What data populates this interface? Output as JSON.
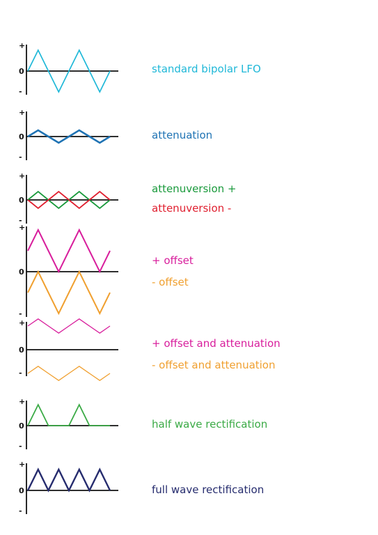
{
  "axis_ticks": {
    "plus": "+",
    "zero": "0",
    "minus": "-"
  },
  "panels": [
    {
      "id": "standard",
      "labels": [
        {
          "text": "standard bipolar LFO",
          "color": "#1fb8d8"
        }
      ],
      "waves": [
        {
          "color": "#1fb8d8",
          "points": [
            [
              0,
              0
            ],
            [
              0.5,
              1
            ],
            [
              1,
              0
            ],
            [
              1.5,
              -1
            ],
            [
              2,
              0
            ],
            [
              2.5,
              1
            ],
            [
              3,
              0
            ],
            [
              3.5,
              -1
            ],
            [
              4,
              0
            ]
          ]
        }
      ]
    },
    {
      "id": "attenuation",
      "labels": [
        {
          "text": "attenuation",
          "color": "#1f73b4"
        }
      ],
      "waves": [
        {
          "color": "#1f73b4",
          "points": [
            [
              0,
              0
            ],
            [
              0.5,
              0.3
            ],
            [
              1,
              0
            ],
            [
              1.5,
              -0.3
            ],
            [
              2,
              0
            ],
            [
              2.5,
              0.3
            ],
            [
              3,
              0
            ],
            [
              3.5,
              -0.3
            ],
            [
              4,
              0
            ]
          ]
        }
      ]
    },
    {
      "id": "attenuversion",
      "labels": [
        {
          "text": "attenuversion +",
          "color": "#1a9a3c"
        },
        {
          "text": "attenuversion -",
          "color": "#e02030"
        }
      ],
      "waves": [
        {
          "color": "#1a9a3c",
          "points": [
            [
              0,
              0
            ],
            [
              0.5,
              0.4
            ],
            [
              1,
              0
            ],
            [
              1.5,
              -0.4
            ],
            [
              2,
              0
            ],
            [
              2.5,
              0.4
            ],
            [
              3,
              0
            ],
            [
              3.5,
              -0.4
            ],
            [
              4,
              0
            ]
          ]
        },
        {
          "color": "#e02030",
          "points": [
            [
              0,
              0
            ],
            [
              0.5,
              -0.4
            ],
            [
              1,
              0
            ],
            [
              1.5,
              0.4
            ],
            [
              2,
              0
            ],
            [
              2.5,
              -0.4
            ],
            [
              3,
              0
            ],
            [
              3.5,
              0.4
            ],
            [
              4,
              0
            ]
          ]
        }
      ]
    },
    {
      "id": "offset",
      "labels": [
        {
          "text": "+ offset",
          "color": "#d81e9c"
        },
        {
          "text": "- offset",
          "color": "#f0a030"
        }
      ],
      "waves": [
        {
          "color": "#d81e9c",
          "points": [
            [
              0,
              1
            ],
            [
              0.5,
              2
            ],
            [
              1,
              1
            ],
            [
              1.5,
              0
            ],
            [
              2,
              1
            ],
            [
              2.5,
              2
            ],
            [
              3,
              1
            ],
            [
              3.5,
              0
            ],
            [
              4,
              1
            ]
          ]
        },
        {
          "color": "#f0a030",
          "points": [
            [
              0,
              -1
            ],
            [
              0.5,
              0
            ],
            [
              1,
              -1
            ],
            [
              1.5,
              -2
            ],
            [
              2,
              -1
            ],
            [
              2.5,
              0
            ],
            [
              3,
              -1
            ],
            [
              3.5,
              -2
            ],
            [
              4,
              -1
            ]
          ]
        }
      ]
    },
    {
      "id": "offset-attenuation",
      "labels": [
        {
          "text": "+ offset and attenuation",
          "color": "#d81e9c"
        },
        {
          "text": "- offset and attenuation",
          "color": "#f0a030"
        }
      ],
      "waves": [
        {
          "color": "#d81e9c",
          "points": [
            [
              0,
              1
            ],
            [
              0.5,
              1.3
            ],
            [
              1,
              1
            ],
            [
              1.5,
              0.7
            ],
            [
              2,
              1
            ],
            [
              2.5,
              1.3
            ],
            [
              3,
              1
            ],
            [
              3.5,
              0.7
            ],
            [
              4,
              1
            ]
          ]
        },
        {
          "color": "#f0a030",
          "points": [
            [
              0,
              -1
            ],
            [
              0.5,
              -0.7
            ],
            [
              1,
              -1
            ],
            [
              1.5,
              -1.3
            ],
            [
              2,
              -1
            ],
            [
              2.5,
              -0.7
            ],
            [
              3,
              -1
            ],
            [
              3.5,
              -1.3
            ],
            [
              4,
              -1
            ]
          ]
        }
      ]
    },
    {
      "id": "half-wave",
      "labels": [
        {
          "text": "half wave rectification",
          "color": "#3aaa45"
        }
      ],
      "waves": [
        {
          "color": "#3aaa45",
          "points": [
            [
              0,
              0
            ],
            [
              0.5,
              1
            ],
            [
              1,
              0
            ],
            [
              2,
              0
            ],
            [
              2.5,
              1
            ],
            [
              3,
              0
            ],
            [
              4,
              0
            ]
          ]
        }
      ]
    },
    {
      "id": "full-wave",
      "labels": [
        {
          "text": "full wave rectification",
          "color": "#262c6e"
        }
      ],
      "waves": [
        {
          "color": "#262c6e",
          "points": [
            [
              0,
              0
            ],
            [
              0.5,
              1
            ],
            [
              1,
              0
            ],
            [
              1.5,
              1
            ],
            [
              2,
              0
            ],
            [
              2.5,
              1
            ],
            [
              3,
              0
            ],
            [
              3.5,
              1
            ],
            [
              4,
              0
            ]
          ]
        }
      ]
    }
  ]
}
